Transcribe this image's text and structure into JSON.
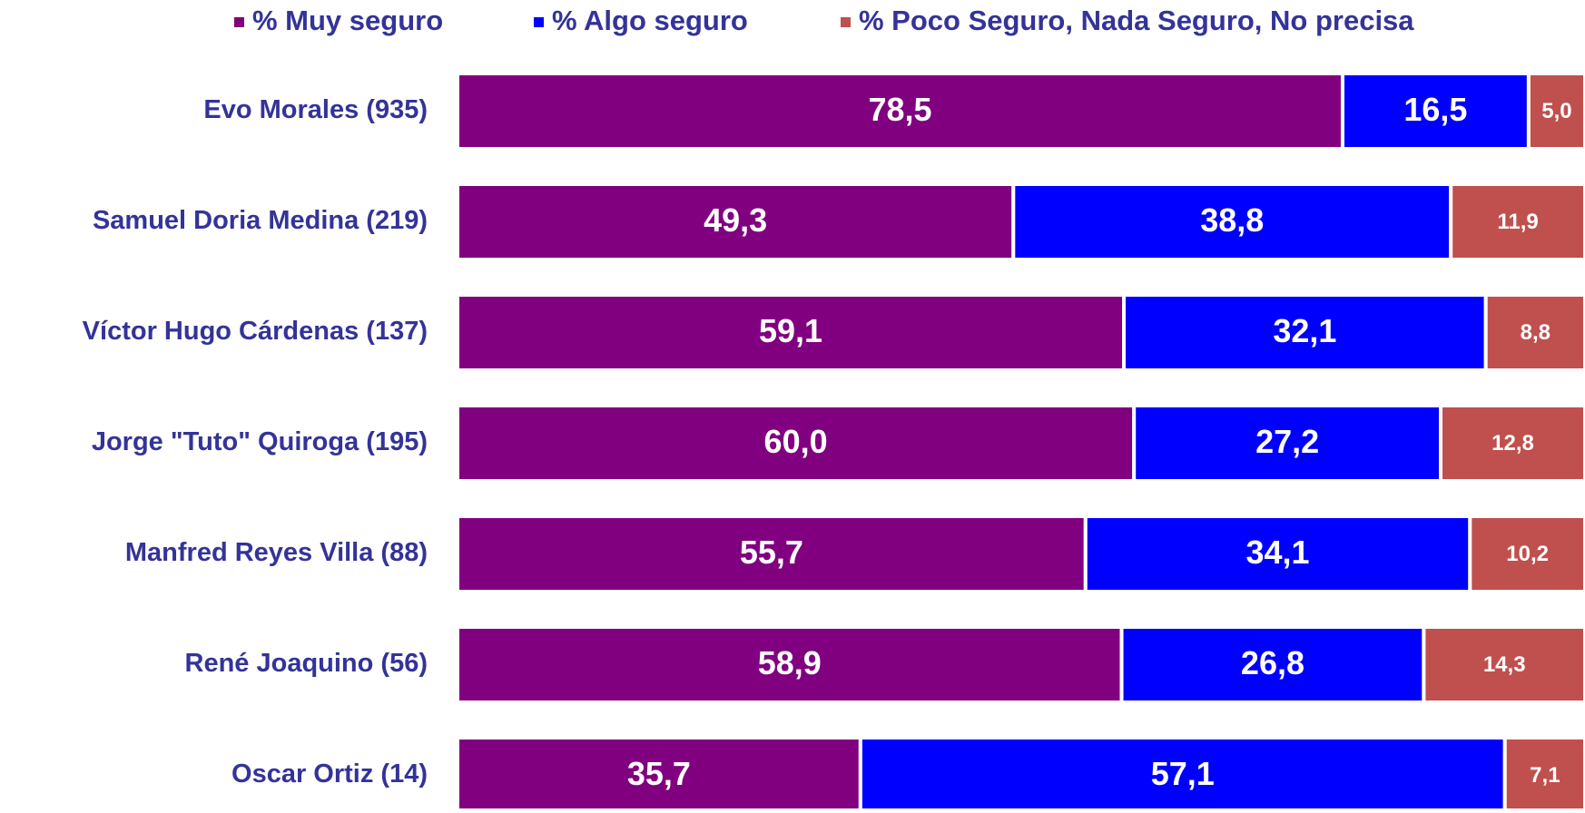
{
  "chart_data": {
    "type": "stacked-bar-horizontal",
    "categories": [
      "Evo Morales (935)",
      "Samuel Doria Medina (219)",
      "Víctor Hugo Cárdenas (137)",
      "Jorge \"Tuto\" Quiroga (195)",
      "Manfred Reyes Villa (88)",
      "René Joaquino (56)",
      "Oscar Ortiz  (14)"
    ],
    "series": [
      {
        "name": "% Muy seguro",
        "color": "#800080",
        "values": [
          78.5,
          49.3,
          59.1,
          60.0,
          55.7,
          58.9,
          35.7
        ],
        "value_labels": [
          "78,5",
          "49,3",
          "59,1",
          "60,0",
          "55,7",
          "58,9",
          "35,7"
        ]
      },
      {
        "name": "% Algo seguro",
        "color": "#0000ff",
        "values": [
          16.5,
          38.8,
          32.1,
          27.2,
          34.1,
          26.8,
          57.1
        ],
        "value_labels": [
          "16,5",
          "38,8",
          "32,1",
          "27,2",
          "34,1",
          "26,8",
          "57,1"
        ]
      },
      {
        "name": "% Poco Seguro, Nada Seguro, No precisa",
        "color": "#c0504d",
        "values": [
          5.0,
          11.9,
          8.8,
          12.8,
          10.2,
          14.3,
          7.1
        ],
        "value_labels": [
          "5,0",
          "11,9",
          "8,8",
          "12,8",
          "10,2",
          "14,3",
          "7,1"
        ]
      }
    ],
    "legend": "top"
  }
}
